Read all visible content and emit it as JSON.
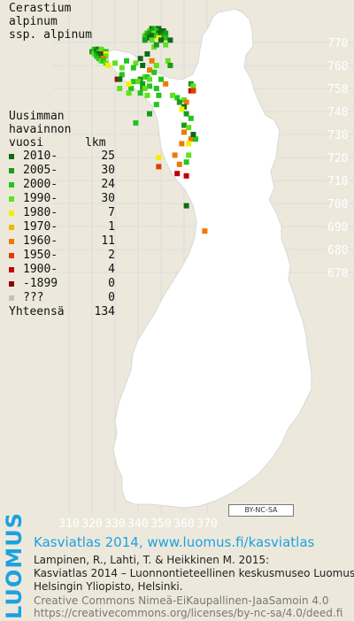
{
  "species": {
    "line1": "Cerastium",
    "line2": "alpinum",
    "line3": "ssp. alpinum"
  },
  "legend": {
    "header1": "Uusimman",
    "header2": "havainnon",
    "header3": "vuosi      lkm",
    "rows": [
      {
        "label": "2010-",
        "count": "25",
        "color": "#0f6b12"
      },
      {
        "label": "2005-",
        "count": "30",
        "color": "#1a9a1a"
      },
      {
        "label": "2000-",
        "count": "24",
        "color": "#22c51e"
      },
      {
        "label": "1990-",
        "count": "30",
        "color": "#60e020"
      },
      {
        "label": "1980-",
        "count": "7",
        "color": "#f4f000"
      },
      {
        "label": "1970-",
        "count": "1",
        "color": "#f0b800"
      },
      {
        "label": "1960-",
        "count": "11",
        "color": "#f07800"
      },
      {
        "label": "1950-",
        "count": "2",
        "color": "#e03c00"
      },
      {
        "label": "1900-",
        "count": "4",
        "color": "#c00000"
      },
      {
        "label": "-1899",
        "count": "0",
        "color": "#8a0000"
      },
      {
        "label": " ???",
        "count": "0",
        "color": "#c0c0c0"
      }
    ],
    "total_label": "Yhteensä",
    "total_count": "134"
  },
  "y_ticks": [
    "770",
    "760",
    "750",
    "740",
    "730",
    "720",
    "710",
    "700",
    "690",
    "680",
    "670"
  ],
  "x_ticks": [
    "310",
    "320",
    "330",
    "340",
    "350",
    "360",
    "370"
  ],
  "cc_badge": "BY-NC-SA",
  "footer": {
    "brand": "LUOMUS",
    "title": "Kasviatlas 2014, www.luomus.fi/kasviatlas",
    "line1": "Lampinen, R., Lahti, T. & Heikkinen M. 2015:",
    "line2": "Kasviatlas 2014 – Luonnontieteellinen keskusmuseo Luomus,",
    "line3": "Helsingin Yliopisto, Helsinki.",
    "cc1": "Creative Commons Nimeä-EiKaupallinen-JaaSamoin 4.0",
    "cc2": "https://creativecommons.org/licenses/by-nc-sa/4.0/deed.fi"
  },
  "colors": {
    "background": "#ece9dc",
    "land": "#ffffff",
    "grid": "#dcdcdc",
    "tick_label": "#ffffff",
    "accent": "#1da1e0"
  },
  "map_data": {
    "grid_unit_km": 10,
    "observations": [
      {
        "x": 346,
        "y": 776,
        "c": 0
      },
      {
        "x": 347,
        "y": 776,
        "c": 1
      },
      {
        "x": 348,
        "y": 776,
        "c": 2
      },
      {
        "x": 349,
        "y": 776,
        "c": 0
      },
      {
        "x": 345,
        "y": 775,
        "c": 3
      },
      {
        "x": 346,
        "y": 775,
        "c": 1
      },
      {
        "x": 348,
        "y": 775,
        "c": 2
      },
      {
        "x": 350,
        "y": 775,
        "c": 0
      },
      {
        "x": 351,
        "y": 775,
        "c": 0
      },
      {
        "x": 344,
        "y": 774,
        "c": 2
      },
      {
        "x": 345,
        "y": 774,
        "c": 1
      },
      {
        "x": 347,
        "y": 774,
        "c": 3
      },
      {
        "x": 349,
        "y": 774,
        "c": 0
      },
      {
        "x": 352,
        "y": 774,
        "c": 1
      },
      {
        "x": 343,
        "y": 773,
        "c": 3
      },
      {
        "x": 344,
        "y": 773,
        "c": 1
      },
      {
        "x": 346,
        "y": 773,
        "c": 0
      },
      {
        "x": 348,
        "y": 773,
        "c": 2
      },
      {
        "x": 350,
        "y": 773,
        "c": 0
      },
      {
        "x": 351,
        "y": 773,
        "c": 1
      },
      {
        "x": 343,
        "y": 772,
        "c": 2
      },
      {
        "x": 345,
        "y": 772,
        "c": 0
      },
      {
        "x": 349,
        "y": 772,
        "c": 4
      },
      {
        "x": 352,
        "y": 772,
        "c": 2
      },
      {
        "x": 343,
        "y": 771,
        "c": 1
      },
      {
        "x": 346,
        "y": 771,
        "c": 3
      },
      {
        "x": 350,
        "y": 771,
        "c": 0
      },
      {
        "x": 354,
        "y": 771,
        "c": 0
      },
      {
        "x": 352,
        "y": 769,
        "c": 3
      },
      {
        "x": 347,
        "y": 768,
        "c": 3
      },
      {
        "x": 321,
        "y": 767,
        "c": 2
      },
      {
        "x": 322,
        "y": 767,
        "c": 1
      },
      {
        "x": 323,
        "y": 767,
        "c": 0
      },
      {
        "x": 324,
        "y": 767,
        "c": 3
      },
      {
        "x": 320,
        "y": 766,
        "c": 1
      },
      {
        "x": 321,
        "y": 766,
        "c": 2
      },
      {
        "x": 322,
        "y": 766,
        "c": 0
      },
      {
        "x": 323,
        "y": 766,
        "c": 2
      },
      {
        "x": 324,
        "y": 766,
        "c": 3
      },
      {
        "x": 326,
        "y": 766,
        "c": 2
      },
      {
        "x": 321,
        "y": 765,
        "c": 3
      },
      {
        "x": 322,
        "y": 765,
        "c": 1
      },
      {
        "x": 323,
        "y": 765,
        "c": 0
      },
      {
        "x": 325,
        "y": 765,
        "c": 8
      },
      {
        "x": 326,
        "y": 765,
        "c": 4
      },
      {
        "x": 322,
        "y": 764,
        "c": 2
      },
      {
        "x": 323,
        "y": 764,
        "c": 1
      },
      {
        "x": 324,
        "y": 764,
        "c": 0
      },
      {
        "x": 326,
        "y": 764,
        "c": 3
      },
      {
        "x": 323,
        "y": 763,
        "c": 2
      },
      {
        "x": 324,
        "y": 763,
        "c": 1
      },
      {
        "x": 325,
        "y": 763,
        "c": 6
      },
      {
        "x": 324,
        "y": 762,
        "c": 3
      },
      {
        "x": 325,
        "y": 762,
        "c": 2
      },
      {
        "x": 326,
        "y": 761,
        "c": 3
      },
      {
        "x": 330,
        "y": 761,
        "c": 3
      },
      {
        "x": 335,
        "y": 762,
        "c": 2
      },
      {
        "x": 339,
        "y": 761,
        "c": 3
      },
      {
        "x": 346,
        "y": 762,
        "c": 6
      },
      {
        "x": 353,
        "y": 762,
        "c": 3
      },
      {
        "x": 327,
        "y": 760,
        "c": 4
      },
      {
        "x": 342,
        "y": 760,
        "c": 0
      },
      {
        "x": 348,
        "y": 760,
        "c": 3
      },
      {
        "x": 354,
        "y": 760,
        "c": 1
      },
      {
        "x": 338,
        "y": 759,
        "c": 2
      },
      {
        "x": 345,
        "y": 758,
        "c": 6
      },
      {
        "x": 333,
        "y": 756,
        "c": 2
      },
      {
        "x": 343,
        "y": 755,
        "c": 3
      },
      {
        "x": 344,
        "y": 755,
        "c": 2
      },
      {
        "x": 331,
        "y": 754,
        "c": 8
      },
      {
        "x": 332,
        "y": 754,
        "c": 0
      },
      {
        "x": 341,
        "y": 754,
        "c": 1
      },
      {
        "x": 345,
        "y": 754,
        "c": 3
      },
      {
        "x": 350,
        "y": 754,
        "c": 2
      },
      {
        "x": 338,
        "y": 753,
        "c": 2
      },
      {
        "x": 340,
        "y": 753,
        "c": 3
      },
      {
        "x": 342,
        "y": 752,
        "c": 1
      },
      {
        "x": 352,
        "y": 752,
        "c": 6
      },
      {
        "x": 363,
        "y": 752,
        "c": 1
      },
      {
        "x": 364,
        "y": 751,
        "c": 3
      },
      {
        "x": 345,
        "y": 751,
        "c": 2
      },
      {
        "x": 332,
        "y": 750,
        "c": 3
      },
      {
        "x": 337,
        "y": 750,
        "c": 2
      },
      {
        "x": 342,
        "y": 750,
        "c": 1
      },
      {
        "x": 343,
        "y": 750,
        "c": 3
      },
      {
        "x": 348,
        "y": 750,
        "c": 2
      },
      {
        "x": 363,
        "y": 749,
        "c": 8
      },
      {
        "x": 364,
        "y": 749,
        "c": 7
      },
      {
        "x": 336,
        "y": 748,
        "c": 3
      },
      {
        "x": 341,
        "y": 748,
        "c": 2
      },
      {
        "x": 344,
        "y": 747,
        "c": 3
      },
      {
        "x": 349,
        "y": 747,
        "c": 2
      },
      {
        "x": 357,
        "y": 746,
        "c": 2
      },
      {
        "x": 360,
        "y": 745,
        "c": 3
      },
      {
        "x": 361,
        "y": 744,
        "c": 6
      },
      {
        "x": 360,
        "y": 742,
        "c": 0
      },
      {
        "x": 359,
        "y": 741,
        "c": 4
      },
      {
        "x": 361,
        "y": 739,
        "c": 1
      },
      {
        "x": 363,
        "y": 737,
        "c": 2
      },
      {
        "x": 339,
        "y": 735,
        "c": 2
      },
      {
        "x": 360,
        "y": 734,
        "c": 1
      },
      {
        "x": 362,
        "y": 733,
        "c": 3
      },
      {
        "x": 360,
        "y": 731,
        "c": 6
      },
      {
        "x": 363,
        "y": 728,
        "c": 6
      },
      {
        "x": 365,
        "y": 728,
        "c": 2
      },
      {
        "x": 359,
        "y": 726,
        "c": 6
      },
      {
        "x": 362,
        "y": 726,
        "c": 4
      },
      {
        "x": 356,
        "y": 721,
        "c": 6
      },
      {
        "x": 362,
        "y": 721,
        "c": 3
      },
      {
        "x": 349,
        "y": 720,
        "c": 4
      },
      {
        "x": 361,
        "y": 718,
        "c": 2
      },
      {
        "x": 349,
        "y": 716,
        "c": 7
      },
      {
        "x": 357,
        "y": 713,
        "c": 8
      },
      {
        "x": 361,
        "y": 712,
        "c": 8
      },
      {
        "x": 361,
        "y": 699,
        "c": 0
      },
      {
        "x": 369,
        "y": 688,
        "c": 6
      },
      {
        "x": 344,
        "y": 765,
        "c": 0
      },
      {
        "x": 348,
        "y": 769,
        "c": 1
      },
      {
        "x": 333,
        "y": 759,
        "c": 3
      },
      {
        "x": 347,
        "y": 757,
        "c": 2
      },
      {
        "x": 336,
        "y": 752,
        "c": 4
      },
      {
        "x": 355,
        "y": 747,
        "c": 3
      },
      {
        "x": 358,
        "y": 744,
        "c": 1
      },
      {
        "x": 364,
        "y": 730,
        "c": 0
      },
      {
        "x": 348,
        "y": 743,
        "c": 2
      },
      {
        "x": 358,
        "y": 717,
        "c": 6
      },
      {
        "x": 345,
        "y": 739,
        "c": 1
      },
      {
        "x": 341,
        "y": 763,
        "c": 0
      }
    ]
  }
}
